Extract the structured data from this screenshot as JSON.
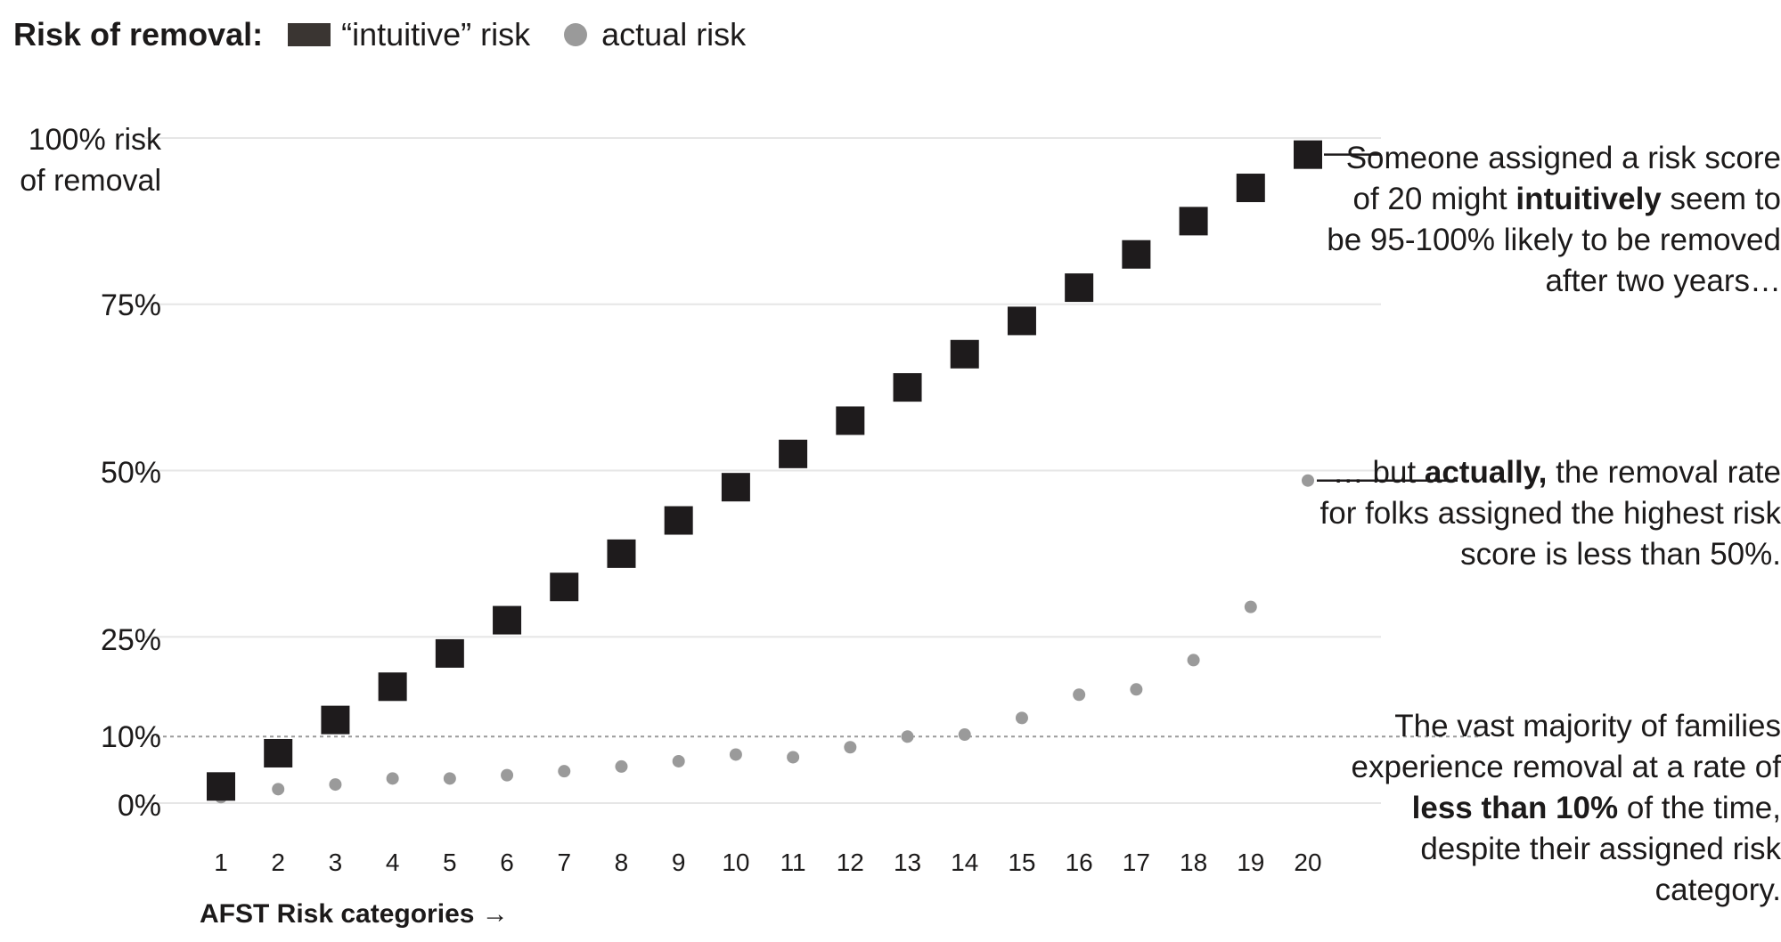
{
  "legend": {
    "title": "Risk of removal:",
    "intuitive_label": "“intuitive” risk",
    "actual_label": "actual risk"
  },
  "y_labels": [
    "100% risk",
    "of removal",
    "75%",
    "50%",
    "25%",
    "10%",
    "0%"
  ],
  "x_axis_title": "AFST Risk categories →",
  "annotations": {
    "a1_part1": "Someone assigned a risk score of 20 might",
    "a1_bold": "intuitively",
    "a1_part2": "seem to be 95-100% likely to be removed after two years…",
    "a2_part1": "… but",
    "a2_bold": "actually,",
    "a2_part2": "the removal rate for folks assigned the highest risk score is less than 50%.",
    "a3_part1": "The vast majority of families experience removal at a rate of",
    "a3_bold": "less than 10%",
    "a3_part2": "of the time, despite their assigned risk category."
  },
  "colors": {
    "intuitive": "#1e1b1c",
    "actual": "#9a9a9a",
    "grid": "#e6e6e6",
    "reference": "#9a9a9a"
  },
  "chart_data": {
    "type": "scatter",
    "categories": [
      "1",
      "2",
      "3",
      "4",
      "5",
      "6",
      "7",
      "8",
      "9",
      "10",
      "11",
      "12",
      "13",
      "14",
      "15",
      "16",
      "17",
      "18",
      "19",
      "20"
    ],
    "series": [
      {
        "name": "“intuitive” risk",
        "marker": "square",
        "values": [
          2.5,
          7.5,
          12.5,
          17.5,
          22.5,
          27.5,
          32.5,
          37.5,
          42.5,
          47.5,
          52.5,
          57.5,
          62.5,
          67.5,
          72.5,
          77.5,
          82.5,
          87.5,
          92.5,
          97.5
        ]
      },
      {
        "name": "actual risk",
        "marker": "circle",
        "values": [
          0.9,
          2.1,
          2.8,
          3.7,
          3.7,
          4.2,
          4.8,
          5.5,
          6.3,
          7.3,
          6.9,
          8.4,
          10.0,
          10.3,
          12.8,
          16.3,
          17.1,
          21.5,
          29.5,
          48.5
        ]
      }
    ],
    "ylim": [
      0,
      100
    ],
    "y_gridlines": [
      0,
      25,
      50,
      75,
      100
    ],
    "reference_line": 10,
    "legend_position": "top-left"
  }
}
